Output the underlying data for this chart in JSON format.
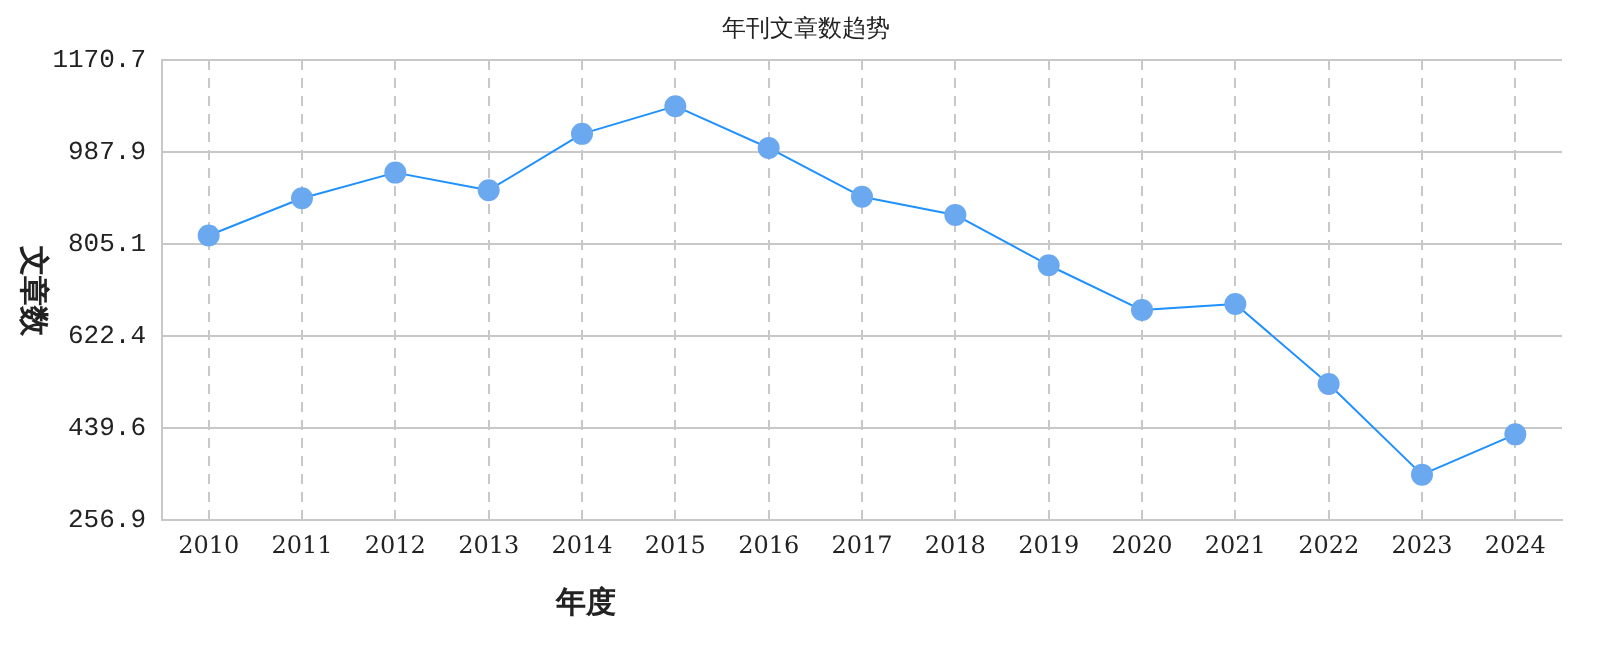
{
  "chart_data": {
    "type": "line",
    "title": "年刊文章数趋势",
    "xlabel": "年度",
    "ylabel": "文章数",
    "categories": [
      "2010",
      "2011",
      "2012",
      "2013",
      "2014",
      "2015",
      "2016",
      "2017",
      "2018",
      "2019",
      "2020",
      "2021",
      "2022",
      "2023",
      "2024"
    ],
    "series": [
      {
        "color": "#1e90ff",
        "values": [
          822,
          896,
          947,
          912,
          1024,
          1079,
          996,
          899,
          863,
          763,
          674,
          686,
          527,
          347,
          427
        ]
      }
    ],
    "ylim": [
      256.9,
      1170.7
    ],
    "yticks": [
      256.9,
      439.6,
      622.4,
      805.1,
      987.9,
      1170.7
    ],
    "grid": true,
    "legend": false,
    "marker": "circle",
    "line_style": "solid"
  }
}
